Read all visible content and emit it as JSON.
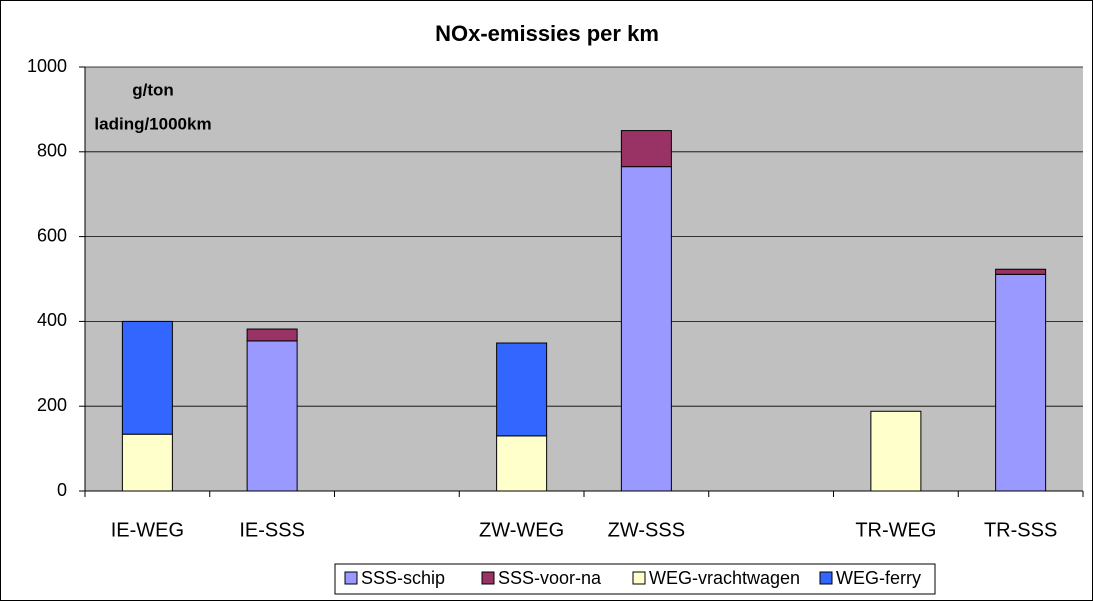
{
  "chart_data": {
    "type": "bar",
    "stacked": true,
    "title": "NOx-emissies per km",
    "annotation": [
      "g/ton",
      "lading/1000km"
    ],
    "categories": [
      "IE-WEG",
      "IE-SSS",
      null,
      "ZW-WEG",
      "ZW-SSS",
      null,
      "TR-WEG",
      "TR-SSS"
    ],
    "series": [
      {
        "name": "SSS-schip",
        "color": "#9999ff",
        "values": [
          null,
          354,
          null,
          null,
          765,
          null,
          null,
          511
        ]
      },
      {
        "name": "SSS-voor-na",
        "color": "#993366",
        "values": [
          null,
          28,
          null,
          null,
          85,
          null,
          null,
          12
        ]
      },
      {
        "name": "WEG-vrachtwagen",
        "color": "#ffffcc",
        "values": [
          134,
          null,
          null,
          130,
          null,
          null,
          188,
          null
        ]
      },
      {
        "name": "WEG-ferry",
        "color": "#3366ff",
        "values": [
          266,
          null,
          null,
          219,
          null,
          null,
          null,
          null
        ]
      }
    ],
    "ylim": [
      0,
      1000
    ],
    "yticks": [
      0,
      200,
      400,
      600,
      800,
      1000
    ],
    "grid": true,
    "plot_background": "#c0c0c0",
    "legend": "bottom"
  }
}
